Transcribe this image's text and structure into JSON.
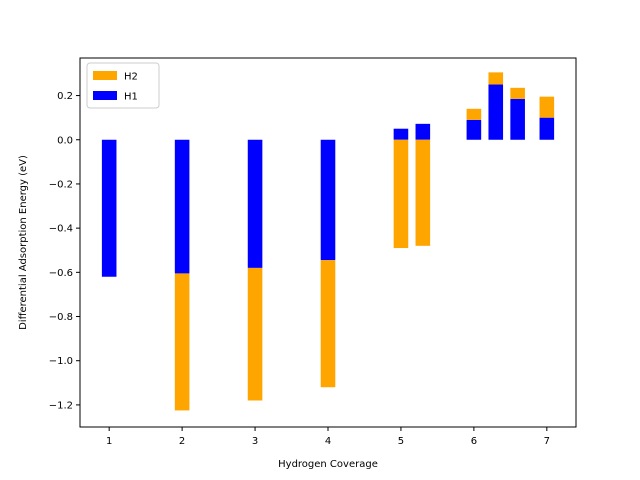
{
  "chart_data": {
    "type": "bar",
    "stacked": true,
    "xlabel": "Hydrogen Coverage",
    "ylabel": "Differential Adsorption Energy (eV)",
    "xlim": [
      0.6,
      7.4
    ],
    "ylim": [
      -1.3,
      0.37
    ],
    "xticks": [
      1,
      2,
      3,
      4,
      5,
      6,
      7
    ],
    "yticks": [
      -1.2,
      -1.0,
      -0.8,
      -0.6,
      -0.4,
      -0.2,
      0.0,
      0.2
    ],
    "ytick_labels": [
      "−1.2",
      "−1.0",
      "−0.8",
      "−0.6",
      "−0.4",
      "−0.2",
      "0.0",
      "0.2"
    ],
    "xtick_labels": [
      "1",
      "2",
      "3",
      "4",
      "5",
      "6",
      "7"
    ],
    "legend": {
      "position": "upper-left",
      "entries": [
        "H2",
        "H1"
      ]
    },
    "bar_width": 0.2,
    "series": [
      {
        "name": "H1",
        "color": "#0000ff",
        "x": [
          1,
          2,
          3,
          4,
          5,
          5.3,
          6,
          6.3,
          6.6,
          7
        ],
        "bottom": [
          0,
          0,
          0,
          0,
          0,
          0,
          0,
          0,
          0,
          0
        ],
        "values": [
          -0.62,
          -0.605,
          -0.58,
          -0.545,
          0.05,
          0.072,
          0.09,
          0.25,
          0.185,
          0.1
        ]
      },
      {
        "name": "H2",
        "color": "#ffa500",
        "x": [
          2,
          3,
          4,
          5,
          5.3,
          6,
          6.3,
          6.6,
          7
        ],
        "bottom": [
          -0.605,
          -0.58,
          -0.545,
          0,
          0,
          0.09,
          0.25,
          0.185,
          0.1
        ],
        "values": [
          -0.62,
          -0.6,
          -0.575,
          -0.49,
          -0.48,
          0.05,
          0.055,
          0.05,
          0.095
        ]
      }
    ]
  }
}
